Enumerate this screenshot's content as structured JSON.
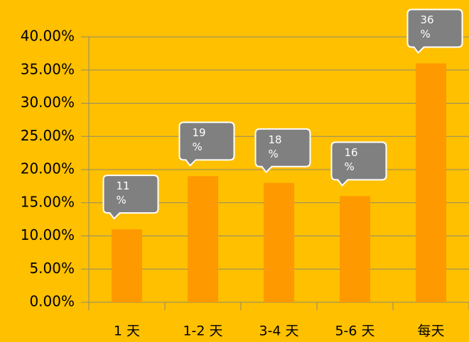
{
  "chart_data": {
    "type": "bar",
    "categories": [
      "1 天",
      "1-2 天",
      "3-4 天",
      "5-6 天",
      "每天"
    ],
    "values": [
      11,
      19,
      18,
      16,
      36
    ],
    "value_labels": [
      "11 %",
      "19 %",
      "18 %",
      "16 %",
      "36 %"
    ],
    "color": "#ff9900",
    "ylim": [
      0,
      40
    ],
    "yticks": [
      {
        "value": 0,
        "label": "0.00%"
      },
      {
        "value": 5,
        "label": "5.00%"
      },
      {
        "value": 10,
        "label": "10.00%"
      },
      {
        "value": 15,
        "label": "15.00%"
      },
      {
        "value": 20,
        "label": "20.00%"
      },
      {
        "value": 25,
        "label": "25.00%"
      },
      {
        "value": 30,
        "label": "30.00%"
      },
      {
        "value": 35,
        "label": "35.00%"
      },
      {
        "value": 40,
        "label": "40.00%"
      }
    ],
    "grid": true
  }
}
